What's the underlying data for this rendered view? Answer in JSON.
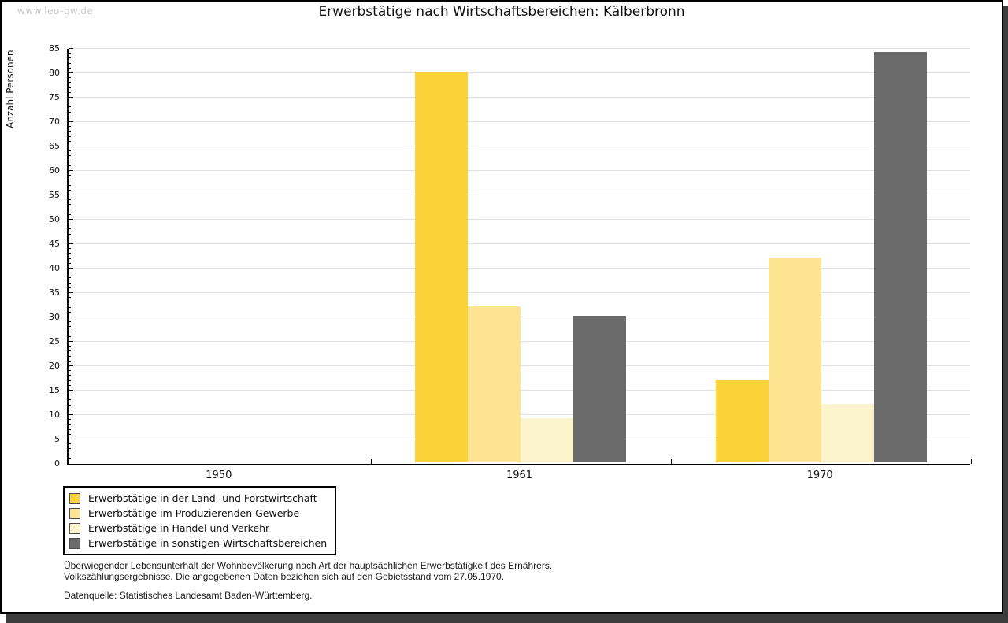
{
  "watermark": "www.leo-bw.de",
  "header": {
    "title": "Erwerbstätige nach Wirtschaftsbereichen: Kälberbronn"
  },
  "chart_data": {
    "type": "bar",
    "title": "Erwerbstätige nach Wirtschaftsbereichen: Kälberbronn",
    "xlabel": "",
    "ylabel": "Anzahl Personen",
    "categories": [
      "1950",
      "1961",
      "1970"
    ],
    "series": [
      {
        "name": "Erwerbstätige in der Land- und Forstwirtschaft",
        "color": "#fbd237",
        "values": [
          0,
          80,
          17
        ]
      },
      {
        "name": "Erwerbstätige im Produzierenden Gewerbe",
        "color": "#fce490",
        "values": [
          0,
          32,
          42
        ]
      },
      {
        "name": "Erwerbstätige in Handel und Verkehr",
        "color": "#fcf4cc",
        "values": [
          0,
          9,
          12
        ]
      },
      {
        "name": "Erwerbstätige in sonstigen Wirtschaftsbereichen",
        "color": "#6b6b6b",
        "values": [
          0,
          30,
          84
        ]
      }
    ],
    "ylim": [
      0,
      85
    ],
    "ytick_step": 5,
    "minor_tick_step": 1,
    "grid": "horizontal",
    "gridline_color": "#e0e0e0",
    "legend_position": "bottom-left"
  },
  "footnote": {
    "line1": "Überwiegender Lebensunterhalt der Wohnbevölkerung nach Art der hauptsächlichen Erwerbstätigkeit des Ernährers.",
    "line2": "Volkszählungsergebnisse. Die angegebenen Daten beziehen sich auf den Gebietsstand vom 27.05.1970."
  },
  "source": "Datenquelle: Statistisches Landesamt Baden-Württemberg."
}
